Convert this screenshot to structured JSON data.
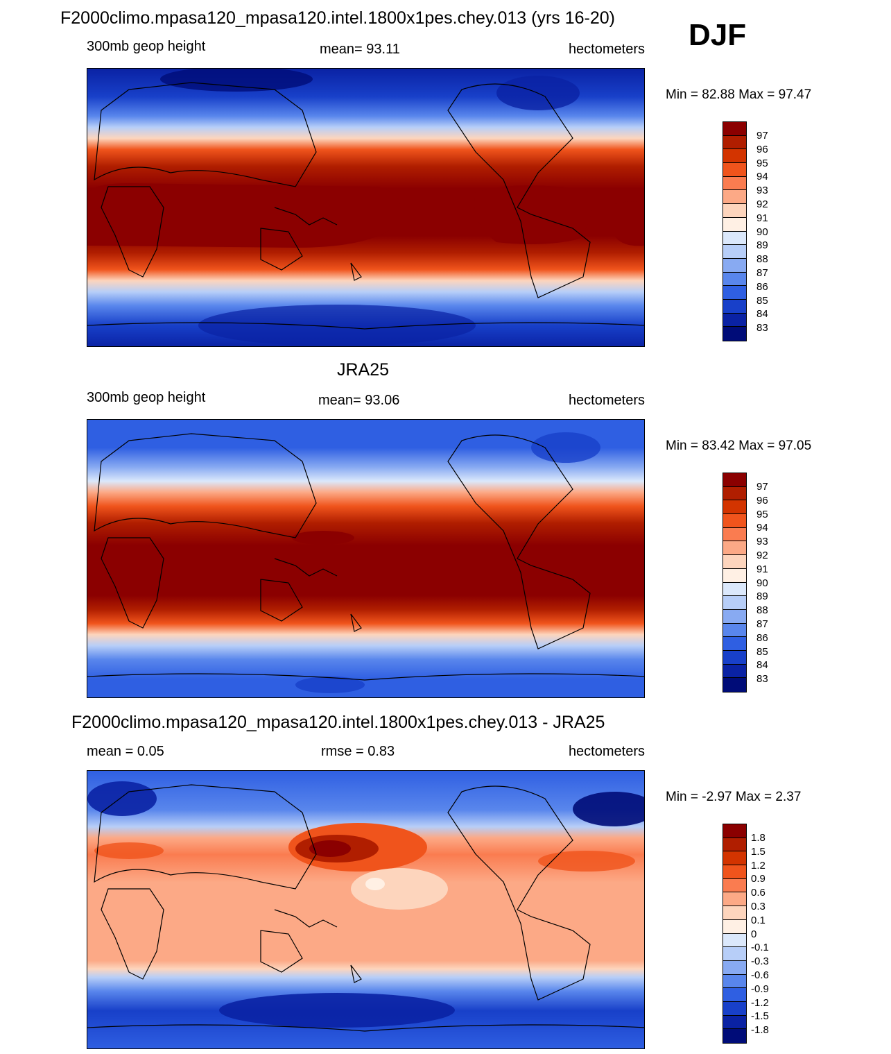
{
  "figure": {
    "title": "F2000climo.mpasa120_mpasa120.intel.1800x1pes.chey.013 (yrs 16-20)",
    "season": "DJF"
  },
  "colors": {
    "height_levels": [
      "#8b0000",
      "#b01e00",
      "#d33400",
      "#f0541c",
      "#fa7c50",
      "#fca986",
      "#fdd5bd",
      "#fff0e4",
      "#dbe8fb",
      "#b7cef8",
      "#88aaf2",
      "#5986ec",
      "#2f5fe2",
      "#1840c9",
      "#0a22a4",
      "#000c78"
    ],
    "diff_levels": [
      "#8b0000",
      "#b01e00",
      "#d33400",
      "#f0541c",
      "#fa7c50",
      "#fca986",
      "#fdd5bd",
      "#fff0e4",
      "#dbe8fb",
      "#b7cef8",
      "#88aaf2",
      "#5986ec",
      "#2f5fe2",
      "#1840c9",
      "#0a22a4",
      "#000c78"
    ]
  },
  "panels": [
    {
      "id": "model",
      "heading": "",
      "left_label": "300mb geop height",
      "center_label": "mean=  93.11",
      "right_label": "hectometers",
      "minmax": "Min =  82.88 Max =  97.47",
      "colorbar_labels": [
        "97",
        "96",
        "95",
        "94",
        "93",
        "92",
        "91",
        "90",
        "89",
        "88",
        "87",
        "86",
        "85",
        "84",
        "83"
      ]
    },
    {
      "id": "obs",
      "heading": "JRA25",
      "left_label": "300mb geop height",
      "center_label": "mean=  93.06",
      "right_label": "hectometers",
      "minmax": "Min =  83.42 Max =  97.05",
      "colorbar_labels": [
        "97",
        "96",
        "95",
        "94",
        "93",
        "92",
        "91",
        "90",
        "89",
        "88",
        "87",
        "86",
        "85",
        "84",
        "83"
      ]
    },
    {
      "id": "diff",
      "heading": "F2000climo.mpasa120_mpasa120.intel.1800x1pes.chey.013 - JRA25",
      "left_label": "mean =   0.05",
      "center_label": "rmse =   0.83",
      "right_label": "hectometers",
      "minmax": "Min =  -2.97 Max =   2.37",
      "colorbar_labels": [
        "1.8",
        "1.5",
        "1.2",
        "0.9",
        "0.6",
        "0.3",
        "0.1",
        "0",
        "-0.1",
        "-0.3",
        "-0.6",
        "-0.9",
        "-1.2",
        "-1.5",
        "-1.8"
      ]
    }
  ]
}
